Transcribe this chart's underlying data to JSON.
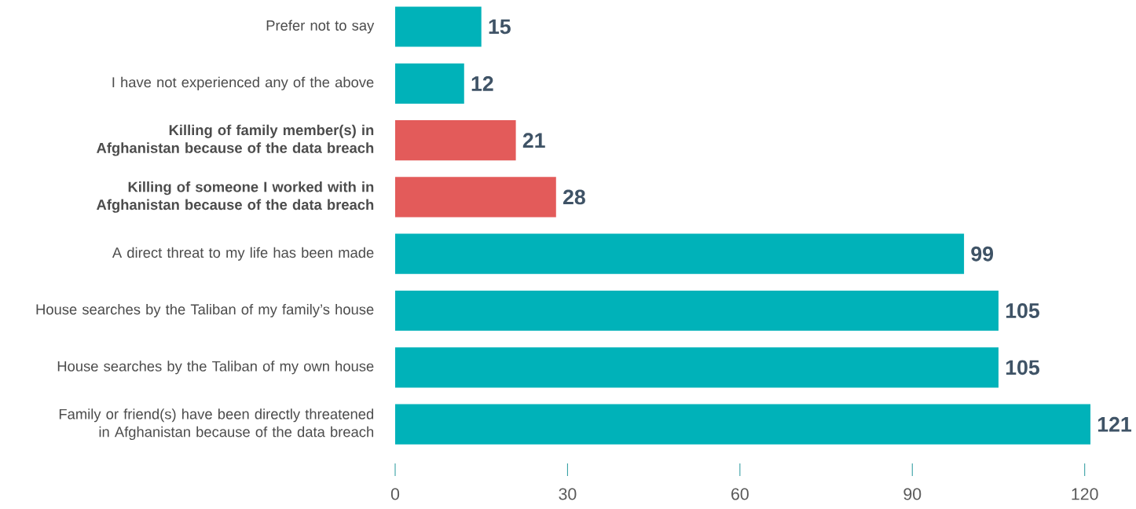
{
  "chart_data": {
    "type": "bar",
    "orientation": "horizontal",
    "categories": [
      "Prefer not to say",
      "I have not experienced any of the above",
      "**Killing of family member(s) in Afghanistan because of the data breach**",
      "**Killing of someone I worked with in Afghanistan because of the data breach**",
      "A direct threat to my life has been made",
      "House searches by the Taliban of my family’s house",
      "House searches by the Taliban of my own house",
      "Family or friend(s) have been directly threatened in Afghanistan because of the data breach"
    ],
    "values": [
      15,
      12,
      21,
      28,
      99,
      105,
      105,
      121
    ],
    "colors": [
      "#00b2b9",
      "#00b2b9",
      "#e35b5a",
      "#e35b5a",
      "#00b2b9",
      "#00b2b9",
      "#00b2b9",
      "#00b2b9"
    ],
    "xlim": [
      0,
      121
    ],
    "xticks": [
      0,
      30,
      60,
      90,
      120
    ],
    "data_labels": true,
    "grid": false
  }
}
